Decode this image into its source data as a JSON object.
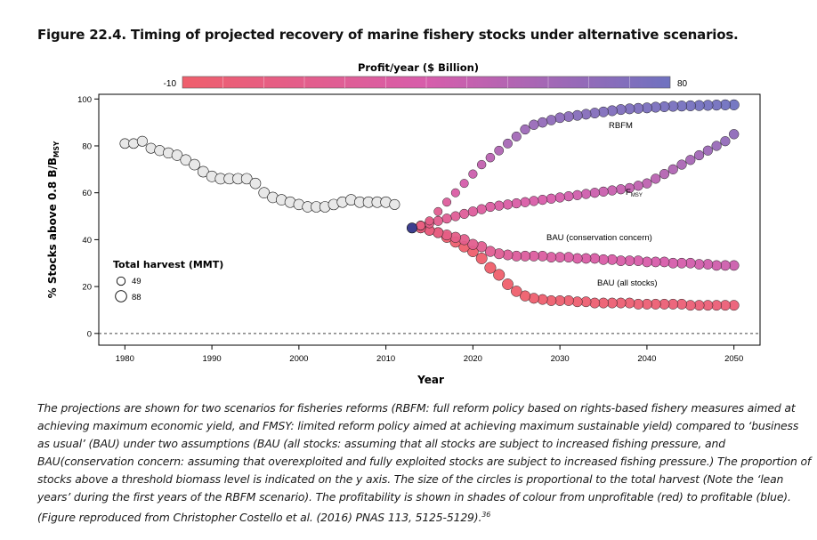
{
  "figure": {
    "title": "Figure 22.4.  Timing of projected recovery of marine fishery stocks under alternative scenarios.",
    "caption": "The projections are shown for two scenarios for fisheries reforms (RBFM: full reform policy based on rights-based fishery measures aimed at achieving maximum economic yield, and FMSY: limited reform policy aimed at achieving maximum sustainable yield) compared to ‘business as usual’ (BAU) under two assumptions  (BAU (all stocks: assuming that all stocks are subject to increased fishing pressure, and BAU(conservation concern: assuming that overexploited and fully exploited stocks are subject to increased fishing pressure.) The proportion of stocks above a threshold biomass level is indicated on the y axis. The size of the circles is proportional to the total harvest (Note the ‘lean years’ during the first years of the RBFM scenario). The profitability is shown in shades of colour from unprofitable (red) to profitable (blue).  (Figure reproduced from Christopher Costello et al. (2016) PNAS 113, 5125-5129).",
    "caption_ref": "36"
  },
  "chart_data": {
    "type": "scatter",
    "xlabel": "Year",
    "ylabel": "% Stocks above 0.8 B/B",
    "ylabel_sub": "MSY",
    "xlim": [
      1977,
      2053
    ],
    "ylim": [
      -5,
      102
    ],
    "xticks": [
      1980,
      1990,
      2000,
      2010,
      2020,
      2030,
      2040,
      2050
    ],
    "yticks": [
      0,
      20,
      40,
      60,
      80,
      100
    ],
    "reference_line_y": 0,
    "colorbar": {
      "title": "Profit/year ($ Billion)",
      "min_label": "-10",
      "max_label": "80",
      "min": -10,
      "max": 80,
      "low_color": "#ef5f6c",
      "mid_color": "#d75dab",
      "high_color": "#6f72c0"
    },
    "size_legend": {
      "title": "Total harvest (MMT)",
      "entries": [
        {
          "label": "49",
          "value": 49
        },
        {
          "label": "88",
          "value": 88
        }
      ]
    },
    "historical": {
      "color": "#e8e8e8",
      "x": [
        1980,
        1981,
        1982,
        1983,
        1984,
        1985,
        1986,
        1987,
        1988,
        1989,
        1990,
        1991,
        1992,
        1993,
        1994,
        1995,
        1996,
        1997,
        1998,
        1999,
        2000,
        2001,
        2002,
        2003,
        2004,
        2005,
        2006,
        2007,
        2008,
        2009,
        2010,
        2011
      ],
      "y": [
        81,
        81,
        82,
        79,
        78,
        77,
        76,
        74,
        72,
        69,
        67,
        66,
        66,
        66,
        66,
        64,
        60,
        58,
        57,
        56,
        55,
        54,
        54,
        54,
        55,
        56,
        57,
        56,
        56,
        56,
        56,
        55
      ],
      "harvest": [
        68,
        68,
        72,
        72,
        74,
        76,
        78,
        80,
        80,
        82,
        82,
        82,
        80,
        80,
        80,
        80,
        80,
        80,
        80,
        80,
        78,
        78,
        80,
        80,
        80,
        80,
        82,
        80,
        80,
        80,
        80,
        72
      ]
    },
    "series": [
      {
        "name": "RBFM",
        "x": [
          2013,
          2014,
          2015,
          2016,
          2017,
          2018,
          2019,
          2020,
          2021,
          2022,
          2023,
          2024,
          2025,
          2026,
          2027,
          2028,
          2029,
          2030,
          2031,
          2032,
          2033,
          2034,
          2035,
          2036,
          2037,
          2038,
          2039,
          2040,
          2041,
          2042,
          2043,
          2044,
          2045,
          2046,
          2047,
          2048,
          2049,
          2050
        ],
        "y": [
          45,
          46,
          48,
          52,
          56,
          60,
          64,
          68,
          72,
          75,
          78,
          81,
          84,
          87,
          89,
          90,
          91,
          92,
          92.5,
          93,
          93.5,
          94,
          94.5,
          95,
          95.5,
          95.8,
          96,
          96.2,
          96.5,
          96.7,
          96.9,
          97,
          97.1,
          97.2,
          97.3,
          97.4,
          97.5,
          97.5
        ],
        "harvest": [
          72,
          56,
          50,
          49,
          50,
          50,
          50,
          52,
          54,
          56,
          58,
          60,
          62,
          64,
          66,
          68,
          68,
          70,
          70,
          72,
          72,
          72,
          72,
          74,
          74,
          74,
          74,
          74,
          74,
          74,
          76,
          76,
          76,
          76,
          76,
          76,
          76,
          76
        ],
        "profit": [
          -2,
          4,
          10,
          16,
          24,
          30,
          36,
          40,
          44,
          48,
          52,
          56,
          58,
          60,
          62,
          64,
          66,
          67,
          68,
          70,
          70,
          71,
          72,
          72,
          73,
          74,
          74,
          75,
          75,
          76,
          76,
          77,
          77,
          78,
          78,
          78,
          79,
          80
        ]
      },
      {
        "name": "F",
        "name_sub": "MSY",
        "x": [
          2013,
          2014,
          2015,
          2016,
          2017,
          2018,
          2019,
          2020,
          2021,
          2022,
          2023,
          2024,
          2025,
          2026,
          2027,
          2028,
          2029,
          2030,
          2031,
          2032,
          2033,
          2034,
          2035,
          2036,
          2037,
          2038,
          2039,
          2040,
          2041,
          2042,
          2043,
          2044,
          2045,
          2046,
          2047,
          2048,
          2049,
          2050
        ],
        "y": [
          45,
          46,
          47,
          48,
          49,
          50,
          51,
          52,
          53,
          54,
          54.5,
          55,
          55.5,
          56,
          56.5,
          57,
          57.5,
          58,
          58.5,
          59,
          59.5,
          60,
          60.5,
          61,
          61.5,
          62,
          63,
          64,
          66,
          68,
          70,
          72,
          74,
          76,
          78,
          80,
          82,
          85
        ],
        "harvest": [
          72,
          64,
          62,
          62,
          62,
          62,
          63,
          64,
          64,
          64,
          64,
          64,
          64,
          64,
          64,
          64,
          64,
          64,
          64,
          64,
          64,
          64,
          64,
          64,
          64,
          64,
          64,
          64,
          64,
          64,
          64,
          64,
          64,
          64,
          64,
          64,
          64,
          66
        ],
        "profit": [
          -2,
          5,
          10,
          14,
          18,
          20,
          22,
          24,
          26,
          28,
          29,
          30,
          31,
          32,
          33,
          34,
          35,
          36,
          37,
          38,
          39,
          40,
          41,
          42,
          43,
          44,
          45,
          46,
          48,
          50,
          52,
          54,
          56,
          58,
          60,
          62,
          64,
          66
        ]
      },
      {
        "name": "BAU (conservation concern)",
        "x": [
          2013,
          2014,
          2015,
          2016,
          2017,
          2018,
          2019,
          2020,
          2021,
          2022,
          2023,
          2024,
          2025,
          2026,
          2027,
          2028,
          2029,
          2030,
          2031,
          2032,
          2033,
          2034,
          2035,
          2036,
          2037,
          2038,
          2039,
          2040,
          2041,
          2042,
          2043,
          2044,
          2045,
          2046,
          2047,
          2048,
          2049,
          2050
        ],
        "y": [
          45,
          45,
          44,
          43,
          42,
          41,
          40,
          38,
          37,
          35,
          34,
          33.5,
          33,
          33,
          33,
          33,
          32.5,
          32.5,
          32.5,
          32,
          32,
          32,
          31.5,
          31.5,
          31,
          31,
          31,
          30.5,
          30.5,
          30.5,
          30,
          30,
          30,
          29.5,
          29.5,
          29,
          29,
          29
        ],
        "harvest": [
          72,
          72,
          72,
          74,
          74,
          76,
          76,
          76,
          76,
          76,
          74,
          72,
          72,
          72,
          72,
          70,
          70,
          70,
          70,
          70,
          70,
          70,
          70,
          70,
          70,
          70,
          70,
          70,
          70,
          70,
          70,
          70,
          70,
          70,
          70,
          70,
          70,
          70
        ],
        "profit": [
          -2,
          2,
          4,
          6,
          8,
          10,
          12,
          14,
          16,
          18,
          20,
          22,
          24,
          25,
          26,
          27,
          28,
          29,
          30,
          30,
          31,
          31,
          32,
          32,
          33,
          33,
          34,
          34,
          35,
          35,
          36,
          36,
          37,
          37,
          38,
          38,
          39,
          40
        ]
      },
      {
        "name": "BAU (all stocks)",
        "x": [
          2013,
          2014,
          2015,
          2016,
          2017,
          2018,
          2019,
          2020,
          2021,
          2022,
          2023,
          2024,
          2025,
          2026,
          2027,
          2028,
          2029,
          2030,
          2031,
          2032,
          2033,
          2034,
          2035,
          2036,
          2037,
          2038,
          2039,
          2040,
          2041,
          2042,
          2043,
          2044,
          2045,
          2046,
          2047,
          2048,
          2049,
          2050
        ],
        "y": [
          45,
          45,
          44,
          43,
          41,
          39,
          37,
          35,
          32,
          28,
          25,
          21,
          18,
          16,
          15,
          14.5,
          14,
          14,
          14,
          13.5,
          13.5,
          13,
          13,
          13,
          13,
          13,
          12.5,
          12.5,
          12.5,
          12.5,
          12.5,
          12.5,
          12,
          12,
          12,
          12,
          12,
          12
        ],
        "harvest": [
          72,
          72,
          74,
          76,
          78,
          80,
          82,
          84,
          86,
          88,
          88,
          84,
          80,
          76,
          74,
          72,
          72,
          72,
          72,
          72,
          72,
          72,
          72,
          72,
          72,
          72,
          72,
          72,
          72,
          72,
          72,
          72,
          72,
          72,
          72,
          72,
          72,
          72
        ],
        "profit": [
          -2,
          -4,
          -6,
          -7,
          -8,
          -8,
          -9,
          -9,
          -9,
          -10,
          -10,
          -10,
          -9,
          -9,
          -8,
          -8,
          -8,
          -7,
          -7,
          -7,
          -6,
          -6,
          -6,
          -5,
          -5,
          -5,
          -4,
          -4,
          -4,
          -3,
          -3,
          -3,
          -3,
          -2,
          -2,
          -2,
          -2,
          -2
        ]
      }
    ],
    "first_point_color": "#3d3f8f"
  }
}
